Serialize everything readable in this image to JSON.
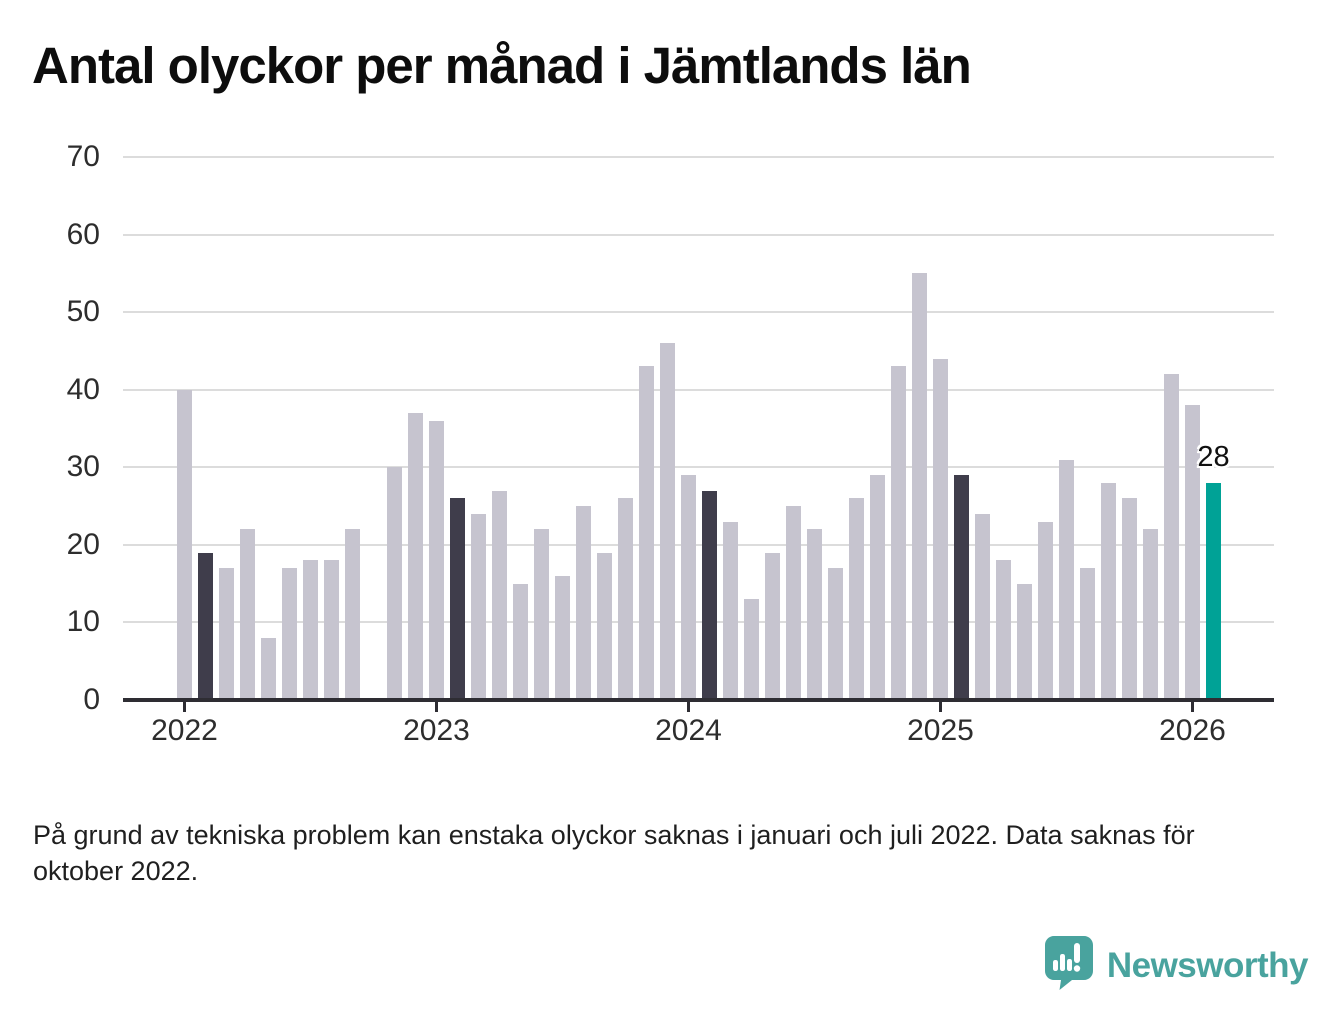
{
  "title": "Antal olyckor per månad i Jämtlands län",
  "footnote": "På grund av tekniska problem kan enstaka olyckor saknas i januari och juli 2022. Data saknas för oktober 2022.",
  "branding": {
    "name": "Newsworthy",
    "logo_icon": "newsworthy-speech-bubble-bar-chart-icon"
  },
  "colors": {
    "bar_default": "#c6c4cf",
    "bar_dark": "#3f3d4b",
    "bar_highlight": "#00a296",
    "axis": "#2e2d33",
    "gridline": "#dcdcdc",
    "brand_teal": "#49a39e",
    "text": "#1f1f1f"
  },
  "chart_data": {
    "type": "bar",
    "title": "Antal olyckor per månad i Jämtlands län",
    "xlabel": "",
    "ylabel": "",
    "ylim": [
      0,
      70
    ],
    "yticks": [
      0,
      10,
      20,
      30,
      40,
      50,
      60,
      70
    ],
    "xticks": [
      "2022",
      "2023",
      "2024",
      "2025",
      "2026"
    ],
    "grid": "horizontal",
    "legend": "none",
    "annotation": {
      "month": "2026-02",
      "text": "28"
    },
    "points": [
      {
        "month": "2022-01",
        "value": 40
      },
      {
        "month": "2022-02",
        "value": 19,
        "style": "dark"
      },
      {
        "month": "2022-03",
        "value": 17
      },
      {
        "month": "2022-04",
        "value": 22
      },
      {
        "month": "2022-05",
        "value": 8
      },
      {
        "month": "2022-06",
        "value": 17
      },
      {
        "month": "2022-07",
        "value": 18
      },
      {
        "month": "2022-08",
        "value": 18
      },
      {
        "month": "2022-09",
        "value": 22
      },
      {
        "month": "2022-10",
        "value": null
      },
      {
        "month": "2022-11",
        "value": 30
      },
      {
        "month": "2022-12",
        "value": 37
      },
      {
        "month": "2023-01",
        "value": 36
      },
      {
        "month": "2023-02",
        "value": 26,
        "style": "dark"
      },
      {
        "month": "2023-03",
        "value": 24
      },
      {
        "month": "2023-04",
        "value": 27
      },
      {
        "month": "2023-05",
        "value": 15
      },
      {
        "month": "2023-06",
        "value": 22
      },
      {
        "month": "2023-07",
        "value": 16
      },
      {
        "month": "2023-08",
        "value": 25
      },
      {
        "month": "2023-09",
        "value": 19
      },
      {
        "month": "2023-10",
        "value": 26
      },
      {
        "month": "2023-11",
        "value": 43
      },
      {
        "month": "2023-12",
        "value": 46
      },
      {
        "month": "2024-01",
        "value": 29
      },
      {
        "month": "2024-02",
        "value": 27,
        "style": "dark"
      },
      {
        "month": "2024-03",
        "value": 23
      },
      {
        "month": "2024-04",
        "value": 13
      },
      {
        "month": "2024-05",
        "value": 19
      },
      {
        "month": "2024-06",
        "value": 25
      },
      {
        "month": "2024-07",
        "value": 22
      },
      {
        "month": "2024-08",
        "value": 17
      },
      {
        "month": "2024-09",
        "value": 26
      },
      {
        "month": "2024-10",
        "value": 29
      },
      {
        "month": "2024-11",
        "value": 43
      },
      {
        "month": "2024-12",
        "value": 55
      },
      {
        "month": "2025-01",
        "value": 44
      },
      {
        "month": "2025-02",
        "value": 29,
        "style": "dark"
      },
      {
        "month": "2025-03",
        "value": 24
      },
      {
        "month": "2025-04",
        "value": 18
      },
      {
        "month": "2025-05",
        "value": 15
      },
      {
        "month": "2025-06",
        "value": 23
      },
      {
        "month": "2025-07",
        "value": 31
      },
      {
        "month": "2025-08",
        "value": 17
      },
      {
        "month": "2025-09",
        "value": 28
      },
      {
        "month": "2025-10",
        "value": 26
      },
      {
        "month": "2025-11",
        "value": 22
      },
      {
        "month": "2025-12",
        "value": 42
      },
      {
        "month": "2026-01",
        "value": 38
      },
      {
        "month": "2026-02",
        "value": 28,
        "style": "highlight"
      }
    ]
  }
}
